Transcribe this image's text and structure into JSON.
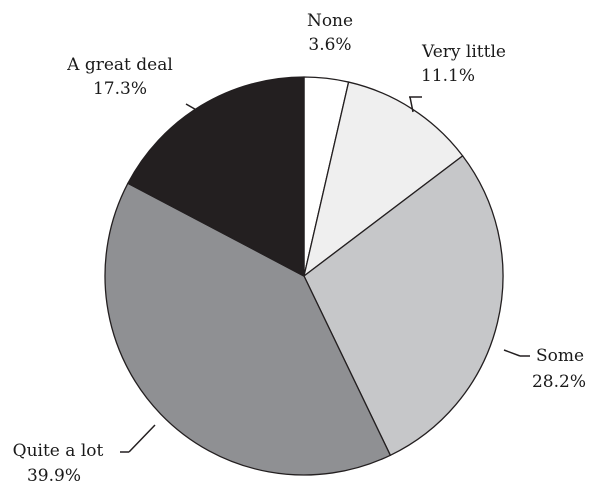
{
  "chart_data": {
    "type": "pie",
    "title": "",
    "slices": [
      {
        "label": "None",
        "value_label": "3.6%",
        "value": 3.6,
        "color": "#ffffff"
      },
      {
        "label": "Very little",
        "value_label": "11.1%",
        "value": 11.1,
        "color": "#efefef"
      },
      {
        "label": "Some",
        "value_label": "28.2%",
        "value": 28.2,
        "color": "#c6c7c9"
      },
      {
        "label": "Quite a lot",
        "value_label": "39.9%",
        "value": 39.9,
        "color": "#8f9093"
      },
      {
        "label": "A great deal",
        "value_label": "17.3%",
        "value": 17.3,
        "color": "#231f20"
      }
    ],
    "start": "12 o'clock",
    "direction": "clockwise",
    "legend": "none (direct labels)"
  }
}
